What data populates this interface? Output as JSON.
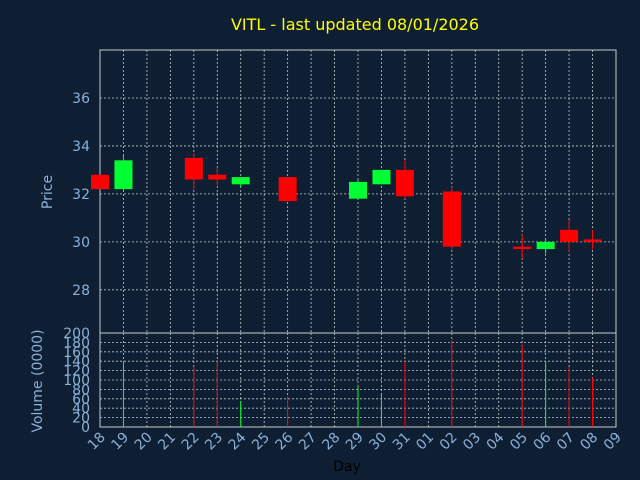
{
  "title": "VITL - last updated 08/01/2026",
  "chart_data": [
    {
      "type": "candlestick",
      "ylabel": "Price",
      "ylim": [
        26.2,
        38
      ],
      "yticks": [
        28,
        30,
        32,
        34,
        36
      ],
      "grid": true,
      "colors": {
        "up": "#00ff33",
        "down": "#ff0000",
        "grid": "#c8c8c8",
        "background": "#0f1f33",
        "text": "#8ab0d8",
        "title": "#ffff00"
      },
      "x": [
        "18",
        "19",
        "20",
        "21",
        "22",
        "23",
        "24",
        "25",
        "26",
        "27",
        "28",
        "29",
        "30",
        "31",
        "01",
        "02",
        "03",
        "04",
        "05",
        "06",
        "07",
        "08",
        "09"
      ],
      "candles": [
        {
          "day": "18",
          "open": 32.8,
          "close": 32.2,
          "high": 32.8,
          "low": 32.2
        },
        {
          "day": "19",
          "open": 32.2,
          "close": 33.4,
          "high": 33.6,
          "low": 32.1
        },
        {
          "day": "22",
          "open": 33.5,
          "close": 32.6,
          "high": 33.7,
          "low": 32.2
        },
        {
          "day": "23",
          "open": 32.8,
          "close": 32.6,
          "high": 33.1,
          "low": 32.3
        },
        {
          "day": "24",
          "open": 32.4,
          "close": 32.7,
          "high": 32.7,
          "low": 32.3
        },
        {
          "day": "26",
          "open": 32.7,
          "close": 31.7,
          "high": 32.7,
          "low": 31.7
        },
        {
          "day": "29",
          "open": 31.8,
          "close": 32.5,
          "high": 32.6,
          "low": 31.8
        },
        {
          "day": "30",
          "open": 32.4,
          "close": 33.0,
          "high": 33.0,
          "low": 32.4
        },
        {
          "day": "31",
          "open": 33.0,
          "close": 31.9,
          "high": 33.4,
          "low": 31.8
        },
        {
          "day": "02",
          "open": 32.1,
          "close": 29.8,
          "high": 32.3,
          "low": 29.7
        },
        {
          "day": "05",
          "open": 29.8,
          "close": 29.7,
          "high": 30.3,
          "low": 29.3
        },
        {
          "day": "06",
          "open": 29.7,
          "close": 30.0,
          "high": 30.1,
          "low": 29.5
        },
        {
          "day": "07",
          "open": 30.5,
          "close": 30.0,
          "high": 30.9,
          "low": 29.6
        },
        {
          "day": "08",
          "open": 30.1,
          "close": 30.0,
          "high": 30.5,
          "low": 29.7
        }
      ]
    },
    {
      "type": "bar",
      "ylabel": "Volume (0000)",
      "xlabel": "Day",
      "ylim": [
        0,
        200
      ],
      "yticks": [
        0,
        20,
        40,
        60,
        80,
        100,
        120,
        140,
        160,
        180,
        200
      ],
      "grid": true,
      "x": [
        "18",
        "19",
        "20",
        "21",
        "22",
        "23",
        "24",
        "25",
        "26",
        "27",
        "28",
        "29",
        "30",
        "31",
        "01",
        "02",
        "03",
        "04",
        "05",
        "06",
        "07",
        "08",
        "09"
      ],
      "bars": [
        {
          "day": "19",
          "value": 140,
          "direction": "up"
        },
        {
          "day": "22",
          "value": 128,
          "direction": "down"
        },
        {
          "day": "23",
          "value": 140,
          "direction": "down"
        },
        {
          "day": "24",
          "value": 55,
          "direction": "up"
        },
        {
          "day": "26",
          "value": 65,
          "direction": "down"
        },
        {
          "day": "29",
          "value": 85,
          "direction": "up"
        },
        {
          "day": "30",
          "value": 70,
          "direction": "up"
        },
        {
          "day": "31",
          "value": 140,
          "direction": "down"
        },
        {
          "day": "02",
          "value": 185,
          "direction": "down"
        },
        {
          "day": "05",
          "value": 175,
          "direction": "down"
        },
        {
          "day": "06",
          "value": 140,
          "direction": "up"
        },
        {
          "day": "07",
          "value": 128,
          "direction": "down"
        },
        {
          "day": "08",
          "value": 105,
          "direction": "down"
        }
      ]
    }
  ]
}
